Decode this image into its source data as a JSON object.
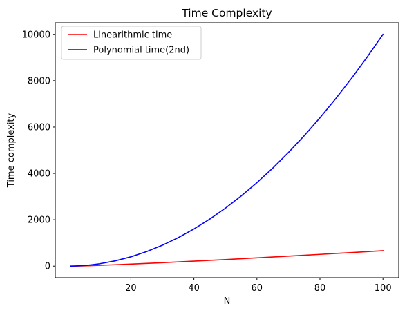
{
  "chart_data": {
    "type": "line",
    "title": "Time Complexity",
    "xlabel": "N",
    "ylabel": "Time complexity",
    "xlim": [
      -4,
      105
    ],
    "ylim": [
      -500,
      10500
    ],
    "xticks": [
      20,
      40,
      60,
      80,
      100
    ],
    "yticks": [
      0,
      2000,
      4000,
      6000,
      8000,
      10000
    ],
    "grid": false,
    "legend_position": "top-left",
    "x": [
      1,
      2,
      4,
      6,
      8,
      10,
      15,
      20,
      25,
      30,
      35,
      40,
      45,
      50,
      55,
      60,
      65,
      70,
      75,
      80,
      85,
      90,
      95,
      100
    ],
    "series": [
      {
        "name": "Linearithmic time",
        "color": "#ff0000",
        "values": [
          0,
          2,
          8,
          16,
          24,
          33,
          59,
          86,
          116,
          147,
          180,
          213,
          247,
          282,
          318,
          354,
          391,
          429,
          467,
          506,
          545,
          584,
          624,
          664
        ]
      },
      {
        "name": "Polynomial time(2nd)",
        "color": "#0000ff",
        "values": [
          1,
          4,
          16,
          36,
          64,
          100,
          225,
          400,
          625,
          900,
          1225,
          1600,
          2025,
          2500,
          3025,
          3600,
          4225,
          4900,
          5625,
          6400,
          7225,
          8100,
          9025,
          10000
        ]
      }
    ]
  }
}
